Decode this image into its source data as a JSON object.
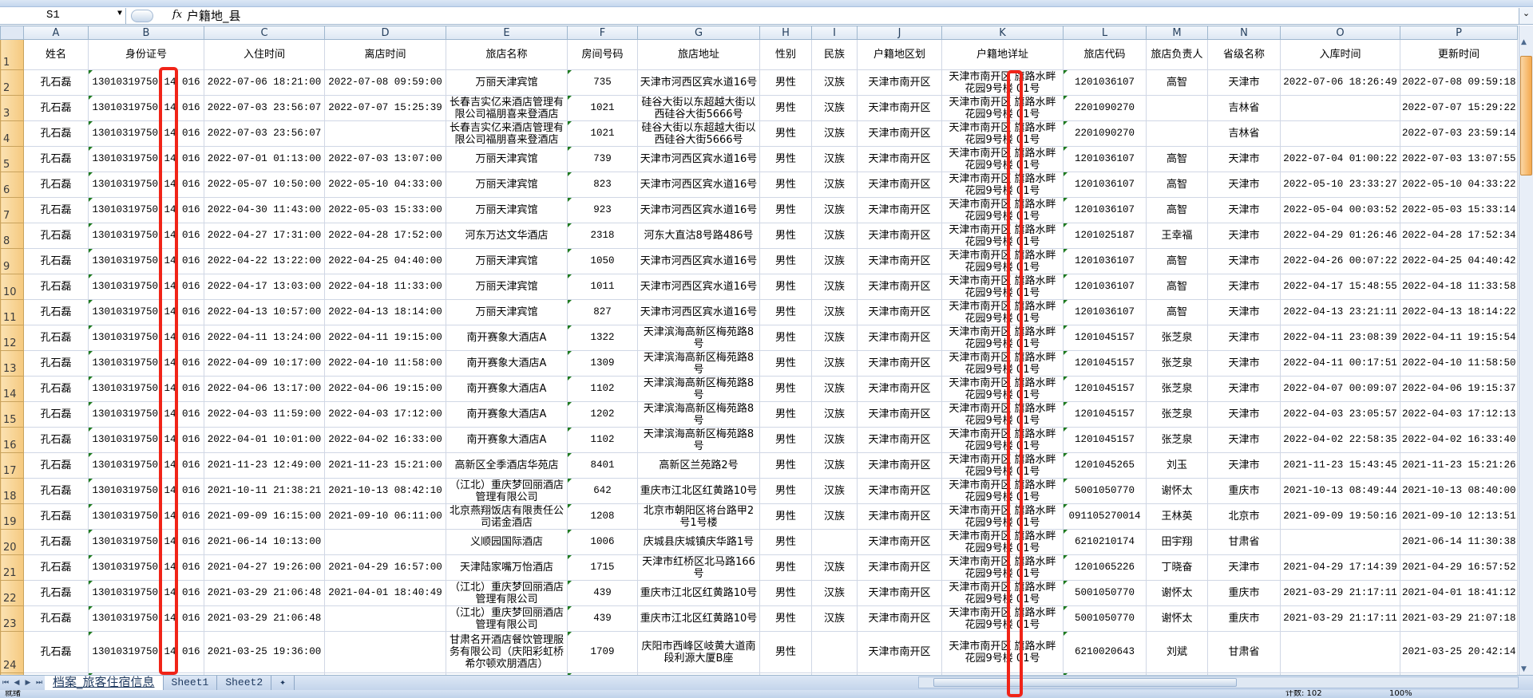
{
  "formula_bar": {
    "name_box": "S1",
    "fx_label": "fx",
    "content": "户籍地_县"
  },
  "columns": [
    "A",
    "B",
    "C",
    "D",
    "E",
    "F",
    "G",
    "H",
    "I",
    "J",
    "K",
    "L",
    "M",
    "N",
    "O",
    "P"
  ],
  "headers": [
    "姓名",
    "身份证号",
    "入住时间",
    "离店时间",
    "旅店名称",
    "房间号码",
    "旅店地址",
    "性别",
    "民族",
    "户籍地区划",
    "户籍地详址",
    "旅店代码",
    "旅店负责人",
    "省级名称",
    "入库时间",
    "更新时间"
  ],
  "rows": [
    [
      "孔石磊",
      "13010319750 14 016",
      "2022-07-06 18:21:00",
      "2022-07-08 09:59:00",
      "万丽天津宾馆",
      "735",
      "天津市河西区宾水道16号",
      "男性",
      "汉族",
      "天津市南开区",
      "天津市南开区 旗路水畔花园9号楼 01号",
      "1201036107",
      "高智",
      "天津市",
      "2022-07-06 18:26:49",
      "2022-07-08 09:59:18"
    ],
    [
      "孔石磊",
      "13010319750 14 016",
      "2022-07-03 23:56:07",
      "2022-07-07 15:25:39",
      "长春吉实亿来酒店管理有限公司福朋喜来登酒店",
      "1021",
      "硅谷大街以东超越大街以西硅谷大街5666号",
      "男性",
      "汉族",
      "天津市南开区",
      "天津市南开区 旗路水畔花园9号楼 01号",
      "2201090270",
      "",
      "吉林省",
      "",
      "2022-07-07 15:29:22"
    ],
    [
      "孔石磊",
      "13010319750 14 016",
      "2022-07-03 23:56:07",
      "",
      "长春吉实亿来酒店管理有限公司福朋喜来登酒店",
      "1021",
      "硅谷大街以东超越大街以西硅谷大街5666号",
      "男性",
      "汉族",
      "天津市南开区",
      "天津市南开区 旗路水畔花园9号楼 01号",
      "2201090270",
      "",
      "吉林省",
      "",
      "2022-07-03 23:59:14"
    ],
    [
      "孔石磊",
      "13010319750 14 016",
      "2022-07-01 01:13:00",
      "2022-07-03 13:07:00",
      "万丽天津宾馆",
      "739",
      "天津市河西区宾水道16号",
      "男性",
      "汉族",
      "天津市南开区",
      "天津市南开区 旗路水畔花园9号楼 01号",
      "1201036107",
      "高智",
      "天津市",
      "2022-07-04 01:00:22",
      "2022-07-03 13:07:55"
    ],
    [
      "孔石磊",
      "13010319750 14 016",
      "2022-05-07 10:50:00",
      "2022-05-10 04:33:00",
      "万丽天津宾馆",
      "823",
      "天津市河西区宾水道16号",
      "男性",
      "汉族",
      "天津市南开区",
      "天津市南开区 旗路水畔花园9号楼 01号",
      "1201036107",
      "高智",
      "天津市",
      "2022-05-10 23:33:27",
      "2022-05-10 04:33:22"
    ],
    [
      "孔石磊",
      "13010319750 14 016",
      "2022-04-30 11:43:00",
      "2022-05-03 15:33:00",
      "万丽天津宾馆",
      "923",
      "天津市河西区宾水道16号",
      "男性",
      "汉族",
      "天津市南开区",
      "天津市南开区 旗路水畔花园9号楼 01号",
      "1201036107",
      "高智",
      "天津市",
      "2022-05-04 00:03:52",
      "2022-05-03 15:33:14"
    ],
    [
      "孔石磊",
      "13010319750 14 016",
      "2022-04-27 17:31:00",
      "2022-04-28 17:52:00",
      "河东万达文华酒店",
      "2318",
      "河东大直沽8号路486号",
      "男性",
      "汉族",
      "天津市南开区",
      "天津市南开区 旗路水畔花园9号楼 01号",
      "1201025187",
      "王幸福",
      "天津市",
      "2022-04-29 01:26:46",
      "2022-04-28 17:52:34"
    ],
    [
      "孔石磊",
      "13010319750 14 016",
      "2022-04-22 13:22:00",
      "2022-04-25 04:40:00",
      "万丽天津宾馆",
      "1050",
      "天津市河西区宾水道16号",
      "男性",
      "汉族",
      "天津市南开区",
      "天津市南开区 旗路水畔花园9号楼 01号",
      "1201036107",
      "高智",
      "天津市",
      "2022-04-26 00:07:22",
      "2022-04-25 04:40:42"
    ],
    [
      "孔石磊",
      "13010319750 14 016",
      "2022-04-17 13:03:00",
      "2022-04-18 11:33:00",
      "万丽天津宾馆",
      "1011",
      "天津市河西区宾水道16号",
      "男性",
      "汉族",
      "天津市南开区",
      "天津市南开区 旗路水畔花园9号楼 01号",
      "1201036107",
      "高智",
      "天津市",
      "2022-04-17 15:48:55",
      "2022-04-18 11:33:58"
    ],
    [
      "孔石磊",
      "13010319750 14 016",
      "2022-04-13 10:57:00",
      "2022-04-13 18:14:00",
      "万丽天津宾馆",
      "827",
      "天津市河西区宾水道16号",
      "男性",
      "汉族",
      "天津市南开区",
      "天津市南开区 旗路水畔花园9号楼 01号",
      "1201036107",
      "高智",
      "天津市",
      "2022-04-13 23:21:11",
      "2022-04-13 18:14:22"
    ],
    [
      "孔石磊",
      "13010319750 14 016",
      "2022-04-11 13:24:00",
      "2022-04-11 19:15:00",
      "南开赛象大酒店A",
      "1322",
      "天津滨海高新区梅苑路8号",
      "男性",
      "汉族",
      "天津市南开区",
      "天津市南开区 旗路水畔花园9号楼 01号",
      "1201045157",
      "张芝泉",
      "天津市",
      "2022-04-11 23:08:39",
      "2022-04-11 19:15:54"
    ],
    [
      "孔石磊",
      "13010319750 14 016",
      "2022-04-09 10:17:00",
      "2022-04-10 11:58:00",
      "南开赛象大酒店A",
      "1309",
      "天津滨海高新区梅苑路8号",
      "男性",
      "汉族",
      "天津市南开区",
      "天津市南开区 旗路水畔花园9号楼 01号",
      "1201045157",
      "张芝泉",
      "天津市",
      "2022-04-11 00:17:51",
      "2022-04-10 11:58:50"
    ],
    [
      "孔石磊",
      "13010319750 14 016",
      "2022-04-06 13:17:00",
      "2022-04-06 19:15:00",
      "南开赛象大酒店A",
      "1102",
      "天津滨海高新区梅苑路8号",
      "男性",
      "汉族",
      "天津市南开区",
      "天津市南开区 旗路水畔花园9号楼 01号",
      "1201045157",
      "张芝泉",
      "天津市",
      "2022-04-07 00:09:07",
      "2022-04-06 19:15:37"
    ],
    [
      "孔石磊",
      "13010319750 14 016",
      "2022-04-03 11:59:00",
      "2022-04-03 17:12:00",
      "南开赛象大酒店A",
      "1202",
      "天津滨海高新区梅苑路8号",
      "男性",
      "汉族",
      "天津市南开区",
      "天津市南开区 旗路水畔花园9号楼 01号",
      "1201045157",
      "张芝泉",
      "天津市",
      "2022-04-03 23:05:57",
      "2022-04-03 17:12:13"
    ],
    [
      "孔石磊",
      "13010319750 14 016",
      "2022-04-01 10:01:00",
      "2022-04-02 16:33:00",
      "南开赛象大酒店A",
      "1102",
      "天津滨海高新区梅苑路8号",
      "男性",
      "汉族",
      "天津市南开区",
      "天津市南开区 旗路水畔花园9号楼 01号",
      "1201045157",
      "张芝泉",
      "天津市",
      "2022-04-02 22:58:35",
      "2022-04-02 16:33:40"
    ],
    [
      "孔石磊",
      "13010319750 14 016",
      "2021-11-23 12:49:00",
      "2021-11-23 15:21:00",
      "高新区全季酒店华苑店",
      "8401",
      "高新区兰苑路2号",
      "男性",
      "汉族",
      "天津市南开区",
      "天津市南开区 旗路水畔花园9号楼 01号",
      "1201045265",
      "刘玉",
      "天津市",
      "2021-11-23 15:43:45",
      "2021-11-23 15:21:26"
    ],
    [
      "孔石磊",
      "13010319750 14 016",
      "2021-10-11 21:38:21",
      "2021-10-13 08:42:10",
      "（江北）重庆梦回丽酒店管理有限公司",
      "642",
      "重庆市江北区红黄路10号",
      "男性",
      "汉族",
      "天津市南开区",
      "天津市南开区 旗路水畔花园9号楼 01号",
      "5001050770",
      "谢怀太",
      "重庆市",
      "2021-10-13 08:49:44",
      "2021-10-13 08:40:00"
    ],
    [
      "孔石磊",
      "13010319750 14 016",
      "2021-09-09 16:15:00",
      "2021-09-10 06:11:00",
      "北京燕翔饭店有限责任公司诺金酒店",
      "1208",
      "北京市朝阳区将台路甲2号1号楼",
      "男性",
      "汉族",
      "天津市南开区",
      "天津市南开区 旗路水畔花园9号楼 01号",
      "091105270014",
      "王林英",
      "北京市",
      "2021-09-09 19:50:16",
      "2021-09-10 12:13:51"
    ],
    [
      "孔石磊",
      "13010319750 14 016",
      "2021-06-14 10:13:00",
      "",
      "义顺园国际酒店",
      "1006",
      "庆城县庆城镇庆华路1号",
      "男性",
      "",
      "天津市南开区",
      "天津市南开区 旗路水畔花园9号楼 01号",
      "6210210174",
      "田宇翔",
      "甘肃省",
      "",
      "2021-06-14 11:30:38"
    ],
    [
      "孔石磊",
      "13010319750 14 016",
      "2021-04-27 19:26:00",
      "2021-04-29 16:57:00",
      "天津陆家嘴万怡酒店",
      "1715",
      "天津市红桥区北马路166号",
      "男性",
      "汉族",
      "天津市南开区",
      "天津市南开区 旗路水畔花园9号楼 01号",
      "1201065226",
      "丁晓奋",
      "天津市",
      "2021-04-29 17:14:39",
      "2021-04-29 16:57:52"
    ],
    [
      "孔石磊",
      "13010319750 14 016",
      "2021-03-29 21:06:48",
      "2021-04-01 18:40:49",
      "（江北）重庆梦回丽酒店管理有限公司",
      "439",
      "重庆市江北区红黄路10号",
      "男性",
      "汉族",
      "天津市南开区",
      "天津市南开区 旗路水畔花园9号楼 01号",
      "5001050770",
      "谢怀太",
      "重庆市",
      "2021-03-29 21:17:11",
      "2021-04-01 18:41:12"
    ],
    [
      "孔石磊",
      "13010319750 14 016",
      "2021-03-29 21:06:48",
      "",
      "（江北）重庆梦回丽酒店管理有限公司",
      "439",
      "重庆市江北区红黄路10号",
      "男性",
      "汉族",
      "天津市南开区",
      "天津市南开区 旗路水畔花园9号楼 01号",
      "5001050770",
      "谢怀太",
      "重庆市",
      "2021-03-29 21:17:11",
      "2021-03-29 21:07:18"
    ],
    [
      "孔石磊",
      "13010319750 14 016",
      "2021-03-25 19:36:00",
      "",
      "甘肃名开酒店餐饮管理服务有限公司（庆阳彩虹桥希尔顿欢朋酒店）",
      "1709",
      "庆阳市西峰区岐黄大道南段利源大厦B座",
      "男性",
      "",
      "天津市南开区",
      "天津市南开区 旗路水畔花园9号楼 01号",
      "6210020643",
      "刘斌",
      "甘肃省",
      "",
      "2021-03-25 20:42:14"
    ]
  ],
  "sheet_tabs": [
    "档案_旅客住宿信息",
    "Sheet1",
    "Sheet2"
  ],
  "active_sheet": "档案_旅客住宿信息",
  "status": {
    "ready": "就绪",
    "count": "计数: 102",
    "zoom": "100%"
  },
  "colors": {
    "annotation": "#f02418",
    "row_header": "#f5c97f",
    "col_header": "#dde7f3"
  }
}
